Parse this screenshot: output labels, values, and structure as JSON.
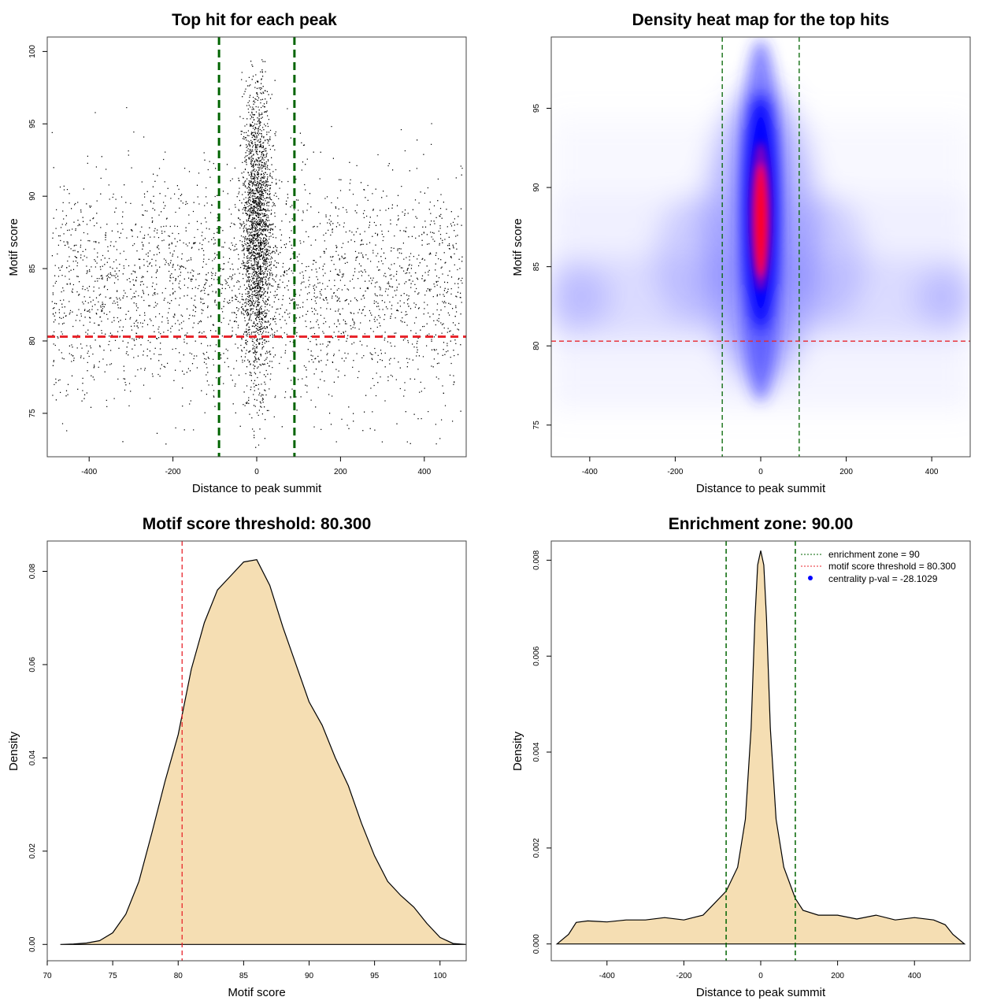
{
  "chart_data": [
    {
      "type": "scatter",
      "title": "Top hit for each peak",
      "xlabel": "Distance to peak summit",
      "ylabel": "Motif score",
      "xlim": [
        -500,
        500
      ],
      "ylim": [
        72,
        101
      ],
      "xticks": [
        "-400",
        "-200",
        "0",
        "200",
        "400"
      ],
      "yticks": [
        "75",
        "80",
        "85",
        "90",
        "95",
        "100"
      ],
      "colors": {
        "points": "#000000",
        "zone": "#006400",
        "threshold": "#e8262c"
      },
      "reference_lines": {
        "vertical": [
          -90,
          90
        ],
        "horizontal": 80.3
      },
      "point_model": {
        "n_background": 2700,
        "background_x_range": [
          -490,
          490
        ],
        "background_score_mean": 83.5,
        "background_score_sd": 4.0,
        "n_central": 2200,
        "central_x_sd": 18,
        "central_score_mean": 87.5,
        "central_score_sd": 5.0
      }
    },
    {
      "type": "heatmap",
      "title": "Density heat map for the top hits",
      "xlabel": "Distance to peak summit",
      "ylabel": "Motif score",
      "xlim": [
        -490,
        490
      ],
      "ylim": [
        73,
        99.5
      ],
      "xticks": [
        "-400",
        "-200",
        "0",
        "200",
        "400"
      ],
      "yticks": [
        "75",
        "80",
        "85",
        "90",
        "95"
      ],
      "colors": {
        "low": "#ffffff",
        "mid": "#0000ff",
        "high": "#ff0000",
        "zone": "#006400",
        "threshold": "#e8262c"
      },
      "reference_lines": {
        "vertical": [
          -90,
          90
        ],
        "horizontal": 80.3
      },
      "hotspot": {
        "x": 0,
        "y": 88
      }
    },
    {
      "type": "area",
      "title": "Motif score threshold: 80.300",
      "xlabel": "Motif score",
      "ylabel": "Density",
      "xlim": [
        70,
        102
      ],
      "ylim": [
        -0.0035,
        0.0865
      ],
      "xticks": [
        "70",
        "75",
        "80",
        "85",
        "90",
        "95",
        "100"
      ],
      "yticks": [
        "0.00",
        "0.02",
        "0.04",
        "0.06",
        "0.08"
      ],
      "colors": {
        "fill": "#f5deb3",
        "line": "#000000",
        "threshold": "#e8262c"
      },
      "reference_lines": {
        "vertical": [
          80.3
        ]
      },
      "x": [
        71,
        72,
        73,
        74,
        75,
        76,
        77,
        78,
        79,
        80,
        81,
        82,
        83,
        84,
        85,
        86,
        87,
        88,
        89,
        90,
        91,
        92,
        93,
        94,
        95,
        96,
        97,
        98,
        99,
        100,
        101,
        102
      ],
      "y": [
        0.0,
        0.0001,
        0.0003,
        0.0008,
        0.0025,
        0.0065,
        0.0135,
        0.024,
        0.035,
        0.045,
        0.059,
        0.069,
        0.076,
        0.079,
        0.082,
        0.0825,
        0.077,
        0.068,
        0.06,
        0.052,
        0.047,
        0.04,
        0.034,
        0.026,
        0.019,
        0.0135,
        0.0105,
        0.008,
        0.0045,
        0.0015,
        0.0002,
        0.0
      ]
    },
    {
      "type": "area",
      "title": "Enrichment zone: 90.00",
      "xlabel": "Distance to peak summit",
      "ylabel": "Density",
      "xlim": [
        -545,
        545
      ],
      "ylim": [
        -0.00035,
        0.0084
      ],
      "xticks": [
        "-400",
        "-200",
        "0",
        "200",
        "400"
      ],
      "yticks": [
        "0.000",
        "0.002",
        "0.004",
        "0.006",
        "0.008"
      ],
      "colors": {
        "fill": "#f5deb3",
        "line": "#000000",
        "zone": "#006400"
      },
      "reference_lines": {
        "vertical": [
          -90,
          90
        ]
      },
      "x": [
        -530,
        -500,
        -480,
        -450,
        -400,
        -350,
        -300,
        -250,
        -200,
        -150,
        -120,
        -90,
        -60,
        -40,
        -25,
        -15,
        -8,
        0,
        8,
        15,
        25,
        40,
        60,
        90,
        110,
        150,
        200,
        250,
        300,
        350,
        400,
        450,
        480,
        500,
        530
      ],
      "y": [
        0.0,
        0.0002,
        0.00045,
        0.00048,
        0.00046,
        0.0005,
        0.0005,
        0.00055,
        0.0005,
        0.0006,
        0.00085,
        0.0011,
        0.0016,
        0.0026,
        0.0045,
        0.0068,
        0.0079,
        0.0082,
        0.0079,
        0.0068,
        0.0045,
        0.0026,
        0.0016,
        0.00095,
        0.0007,
        0.0006,
        0.0006,
        0.00052,
        0.0006,
        0.0005,
        0.00055,
        0.0005,
        0.0004,
        0.0002,
        0.0
      ],
      "legend": {
        "placement": "top-right",
        "entries": [
          {
            "label": "enrichment zone = 90",
            "style": "dotted-line",
            "color": "#006400"
          },
          {
            "label": "motif score threshold = 80.300",
            "style": "dotted-line",
            "color": "#e8262c"
          },
          {
            "label": "centrality p-val = -28.1029",
            "style": "point",
            "color": "#0000ff"
          }
        ]
      }
    }
  ]
}
